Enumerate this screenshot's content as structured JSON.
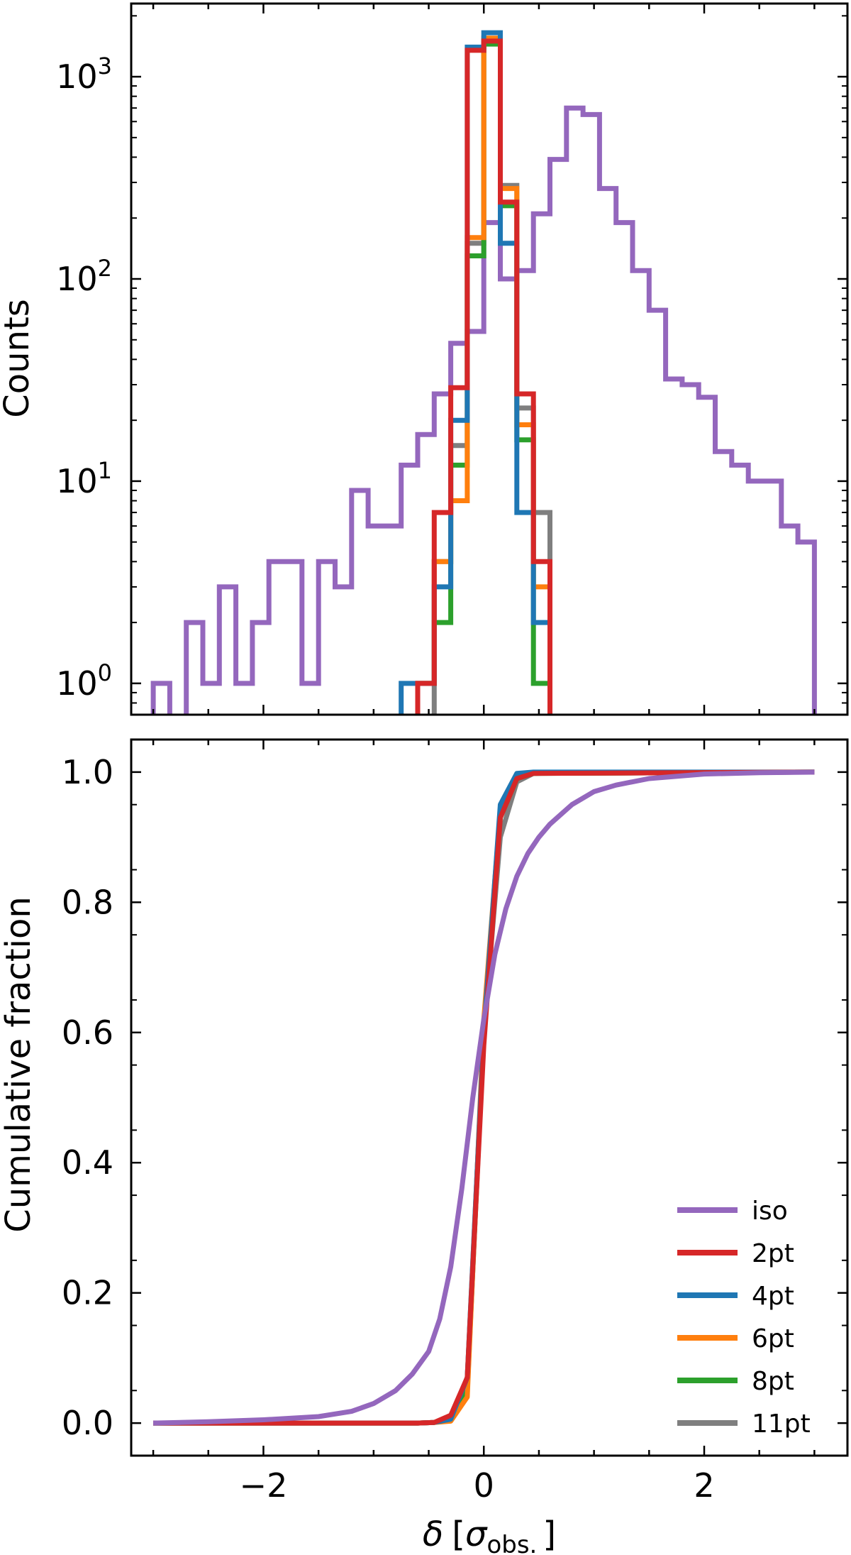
{
  "chart_data": [
    {
      "type": "histogram",
      "panel": "top",
      "ylabel": "Counts",
      "yscale": "log",
      "xlim": [
        -3.2,
        3.3
      ],
      "ylim": [
        0.7,
        2300
      ],
      "x_ticks": [
        -2,
        0,
        2
      ],
      "y_ticks": [
        {
          "value": 1,
          "label": "10",
          "exp": "0"
        },
        {
          "value": 10,
          "label": "10",
          "exp": "1"
        },
        {
          "value": 100,
          "label": "10",
          "exp": "2"
        },
        {
          "value": 1000,
          "label": "10",
          "exp": "3"
        }
      ],
      "series": [
        {
          "name": "iso",
          "color": "#9467bd",
          "bin_edges": [
            -3.0,
            -2.85,
            -2.7,
            -2.55,
            -2.4,
            -2.25,
            -2.1,
            -1.95,
            -1.8,
            -1.65,
            -1.5,
            -1.35,
            -1.2,
            -1.05,
            -0.9,
            -0.75,
            -0.6,
            -0.45,
            -0.3,
            -0.15,
            0.0,
            0.15,
            0.3,
            0.45,
            0.6,
            0.75,
            0.9,
            1.05,
            1.2,
            1.35,
            1.5,
            1.65,
            1.8,
            1.95,
            2.1,
            2.25,
            2.4,
            2.55,
            2.7,
            2.85,
            3.0
          ],
          "counts": [
            1,
            0,
            2,
            1,
            3,
            1,
            2,
            4,
            4,
            1,
            4,
            3,
            9,
            6,
            6,
            12,
            17,
            27,
            48,
            55,
            190,
            100,
            110,
            210,
            390,
            700,
            650,
            280,
            190,
            110,
            70,
            32,
            30,
            26,
            14,
            12,
            10,
            10,
            6,
            5
          ]
        },
        {
          "name": "2pt",
          "color": "#d62728",
          "bin_edges": [
            -0.6,
            -0.45,
            -0.3,
            -0.15,
            0.0,
            0.15,
            0.3,
            0.45,
            0.6
          ],
          "counts": [
            1,
            7,
            29,
            1350,
            1500,
            240,
            27,
            4
          ]
        },
        {
          "name": "4pt",
          "color": "#1f77b4",
          "bin_edges": [
            -0.75,
            -0.6,
            -0.45,
            -0.3,
            -0.15,
            0.0,
            0.15,
            0.3,
            0.45,
            0.6
          ],
          "counts": [
            1,
            1,
            3,
            20,
            1400,
            1650,
            150,
            7,
            2
          ]
        },
        {
          "name": "6pt",
          "color": "#ff7f0e",
          "bin_edges": [
            -0.6,
            -0.45,
            -0.3,
            -0.15,
            0.0,
            0.15,
            0.3,
            0.45,
            0.6
          ],
          "counts": [
            1,
            4,
            8,
            160,
            1550,
            280,
            19,
            3
          ]
        },
        {
          "name": "8pt",
          "color": "#2ca02c",
          "bin_edges": [
            -0.6,
            -0.45,
            -0.3,
            -0.15,
            0.0,
            0.15,
            0.3,
            0.45,
            0.6
          ],
          "counts": [
            1,
            2,
            12,
            130,
            1450,
            230,
            16,
            1
          ]
        },
        {
          "name": "11pt",
          "color": "#7f7f7f",
          "bin_edges": [
            -0.45,
            -0.3,
            -0.15,
            0.0,
            0.15,
            0.3,
            0.45,
            0.6
          ],
          "counts": [
            4,
            15,
            150,
            1500,
            290,
            23,
            7,
            1
          ]
        }
      ]
    },
    {
      "type": "line",
      "panel": "bottom",
      "xlabel": "δ [σobs.]",
      "xlabel_parts": {
        "symbol": "δ",
        "open": "[",
        "sigma": "σ",
        "sub": "obs.",
        "close": "]"
      },
      "ylabel": "Cumulative fraction",
      "xlim": [
        -3.2,
        3.3
      ],
      "ylim": [
        -0.05,
        1.05
      ],
      "x_ticks": [
        -2,
        0,
        2
      ],
      "y_ticks": [
        0.0,
        0.2,
        0.4,
        0.6,
        0.8,
        1.0
      ],
      "y_tick_labels": [
        "0.0",
        "0.2",
        "0.4",
        "0.6",
        "0.8",
        "1.0"
      ],
      "x_tick_labels": [
        "−2",
        "0",
        "2"
      ],
      "legend": {
        "position": "lower-right",
        "entries": [
          "iso",
          "2pt",
          "4pt",
          "6pt",
          "8pt",
          "11pt"
        ]
      },
      "series": [
        {
          "name": "11pt",
          "color": "#7f7f7f",
          "x": [
            -3.0,
            -0.6,
            -0.45,
            -0.3,
            -0.15,
            0.0,
            0.15,
            0.3,
            0.45,
            3.0
          ],
          "y": [
            0.0,
            0.0,
            0.001,
            0.006,
            0.07,
            0.6,
            0.9,
            0.985,
            0.998,
            1.0
          ]
        },
        {
          "name": "8pt",
          "color": "#2ca02c",
          "x": [
            -3.0,
            -0.6,
            -0.45,
            -0.3,
            -0.15,
            0.0,
            0.15,
            0.3,
            0.45,
            3.0
          ],
          "y": [
            0.0,
            0.0,
            0.001,
            0.005,
            0.05,
            0.6,
            0.93,
            0.99,
            0.998,
            1.0
          ]
        },
        {
          "name": "6pt",
          "color": "#ff7f0e",
          "x": [
            -3.0,
            -0.6,
            -0.45,
            -0.3,
            -0.15,
            0.0,
            0.15,
            0.3,
            0.45,
            3.0
          ],
          "y": [
            0.0,
            0.0,
            0.001,
            0.003,
            0.04,
            0.62,
            0.94,
            0.995,
            0.999,
            1.0
          ]
        },
        {
          "name": "4pt",
          "color": "#1f77b4",
          "x": [
            -3.0,
            -0.6,
            -0.45,
            -0.3,
            -0.15,
            0.0,
            0.15,
            0.3,
            0.45,
            3.0
          ],
          "y": [
            0.0,
            0.0,
            0.001,
            0.006,
            0.07,
            0.6,
            0.95,
            0.998,
            1.0,
            1.0
          ]
        },
        {
          "name": "2pt",
          "color": "#d62728",
          "x": [
            -3.0,
            -0.6,
            -0.45,
            -0.3,
            -0.15,
            0.0,
            0.15,
            0.3,
            0.45,
            3.0
          ],
          "y": [
            0.0,
            0.0,
            0.001,
            0.012,
            0.07,
            0.58,
            0.93,
            0.99,
            0.998,
            1.0
          ]
        },
        {
          "name": "iso",
          "color": "#9467bd",
          "x": [
            -3.0,
            -2.5,
            -2.0,
            -1.5,
            -1.2,
            -1.0,
            -0.8,
            -0.65,
            -0.5,
            -0.4,
            -0.3,
            -0.2,
            -0.1,
            0.0,
            0.1,
            0.2,
            0.3,
            0.4,
            0.5,
            0.6,
            0.8,
            1.0,
            1.2,
            1.5,
            2.0,
            2.5,
            3.0
          ],
          "y": [
            0.0,
            0.002,
            0.005,
            0.01,
            0.018,
            0.03,
            0.05,
            0.075,
            0.11,
            0.16,
            0.24,
            0.36,
            0.5,
            0.62,
            0.72,
            0.79,
            0.84,
            0.875,
            0.9,
            0.92,
            0.95,
            0.97,
            0.98,
            0.99,
            0.997,
            0.999,
            1.0
          ]
        }
      ]
    }
  ]
}
